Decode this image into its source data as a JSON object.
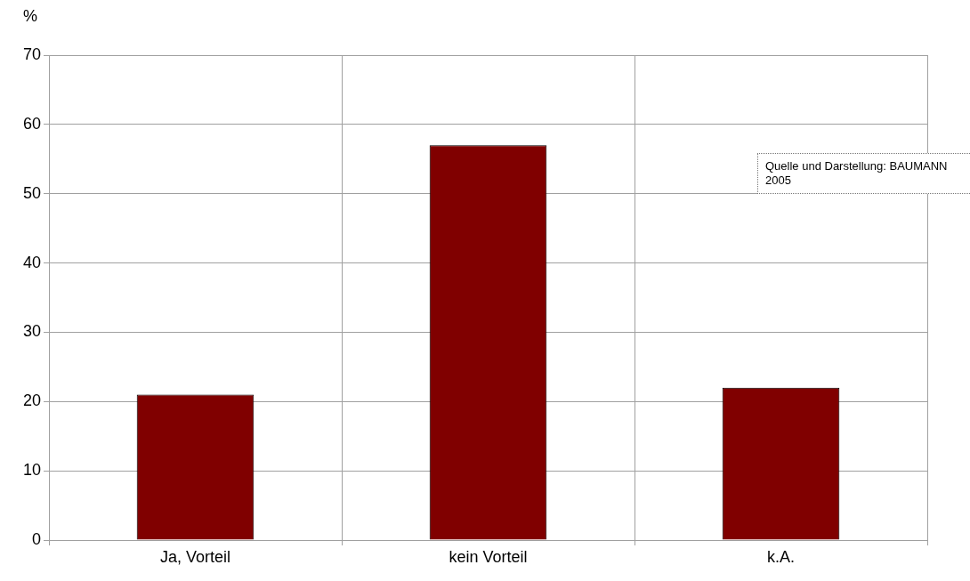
{
  "chart_data": {
    "type": "bar",
    "ylabel": "%",
    "categories": [
      "Ja, Vorteil",
      "kein Vorteil",
      "k.A."
    ],
    "values": [
      21,
      57,
      22
    ],
    "color": "#800000",
    "ylim": [
      0,
      70
    ],
    "yticks": [
      0,
      10,
      20,
      30,
      40,
      50,
      60,
      70
    ],
    "grid": true,
    "annotations": [
      "Quelle und Darstellung: BAUMANN 2005"
    ]
  }
}
